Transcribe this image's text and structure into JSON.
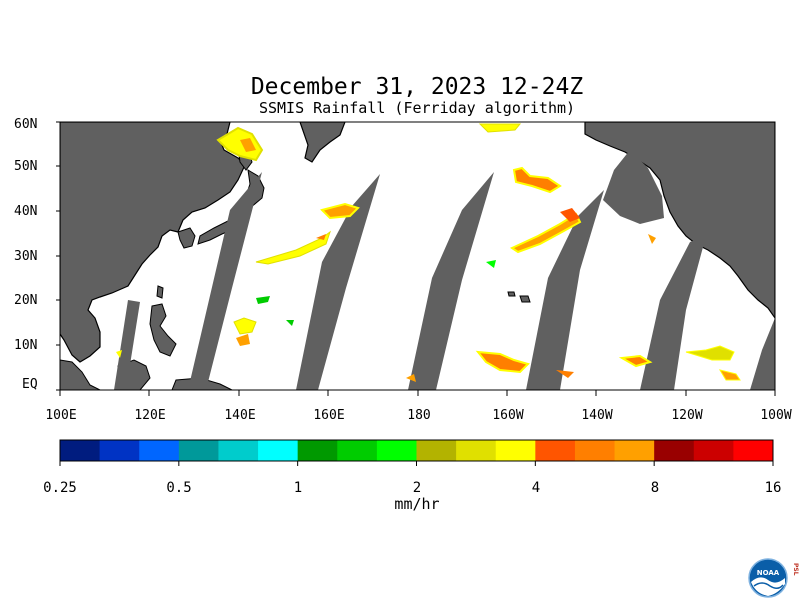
{
  "map": {
    "title": "December 31, 2023 12-24Z",
    "subtitle": "SSMIS Rainfall (Ferriday algorithm)",
    "lat_labels": [
      "60N",
      "50N",
      "40N",
      "30N",
      "20N",
      "10N",
      "EQ"
    ],
    "lon_labels": [
      "100E",
      "120E",
      "140E",
      "160E",
      "180",
      "160W",
      "140W",
      "120W",
      "100W"
    ],
    "colors": {
      "land": "#606060",
      "no_data_swath": "#606060",
      "ocean_background": "#ffffff"
    }
  },
  "colorbar": {
    "colors": [
      "#001c7f",
      "#0033c4",
      "#0066ff",
      "#00999a",
      "#00cccc",
      "#00ffff",
      "#009900",
      "#00cc00",
      "#00ff00",
      "#b3b300",
      "#e0e000",
      "#ffff00",
      "#ff5500",
      "#ff7f00",
      "#ffa000",
      "#990000",
      "#cc0000",
      "#ff0000"
    ],
    "tick_labels": [
      "0.25",
      "0.5",
      "1",
      "2",
      "4",
      "8",
      "16"
    ],
    "units": "mm/hr"
  },
  "logo": {
    "name": "NOAA",
    "side_text": "PSL"
  }
}
